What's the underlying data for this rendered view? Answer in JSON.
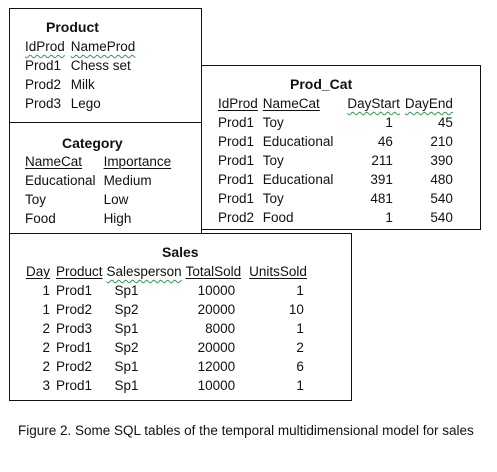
{
  "product": {
    "title": "Product",
    "headers": [
      "IdProd",
      "NameProd"
    ],
    "rows": [
      [
        "Prod1",
        "Chess set"
      ],
      [
        "Prod2",
        "Milk"
      ],
      [
        "Prod3",
        "Lego"
      ]
    ]
  },
  "category": {
    "title": "Category",
    "headers": [
      "NameCat",
      "Importance"
    ],
    "rows": [
      [
        "Educational",
        "Medium"
      ],
      [
        "Toy",
        "Low"
      ],
      [
        "Food",
        "High"
      ]
    ]
  },
  "prod_cat": {
    "title": "Prod_Cat",
    "headers": [
      "IdProd",
      "NameCat",
      "DayStart",
      "DayEnd"
    ],
    "rows": [
      [
        "Prod1",
        "Toy",
        "1",
        "45"
      ],
      [
        "Prod1",
        "Educational",
        "46",
        "210"
      ],
      [
        "Prod1",
        "Toy",
        "211",
        "390"
      ],
      [
        "Prod1",
        "Educational",
        "391",
        "480"
      ],
      [
        "Prod1",
        "Toy",
        "481",
        "540"
      ],
      [
        "Prod2",
        "Food",
        "1",
        "540"
      ]
    ]
  },
  "sales": {
    "title": "Sales",
    "headers": [
      "Day",
      "Product",
      "Salesperson",
      "TotalSold",
      "UnitsSold"
    ],
    "rows": [
      [
        "1",
        "Prod1",
        "Sp1",
        "10000",
        "1"
      ],
      [
        "1",
        "Prod2",
        "Sp2",
        "20000",
        "10"
      ],
      [
        "2",
        "Prod3",
        "Sp1",
        "8000",
        "1"
      ],
      [
        "2",
        "Prod1",
        "Sp2",
        "20000",
        "2"
      ],
      [
        "2",
        "Prod2",
        "Sp1",
        "12000",
        "6"
      ],
      [
        "3",
        "Prod1",
        "Sp1",
        "10000",
        "1"
      ]
    ]
  },
  "caption": "Figure 2. Some SQL tables of the temporal multidimensional model for sales"
}
